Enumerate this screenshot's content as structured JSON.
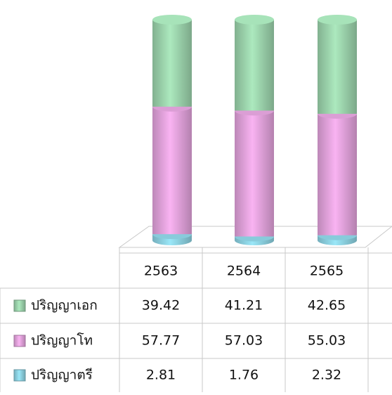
{
  "chart_data": {
    "type": "stacked_bar",
    "categories": [
      "2563",
      "2564",
      "2565"
    ],
    "series": [
      {
        "name": "ปริญญาเอก",
        "color": "#9fd8b0",
        "values": [
          39.42,
          41.21,
          42.65
        ]
      },
      {
        "name": "ปริญญาโท",
        "color": "#e7a6e0",
        "values": [
          57.77,
          57.03,
          55.03
        ]
      },
      {
        "name": "ปริญญาตรี",
        "color": "#8fd6e6",
        "values": [
          2.81,
          1.76,
          2.32
        ]
      }
    ]
  }
}
